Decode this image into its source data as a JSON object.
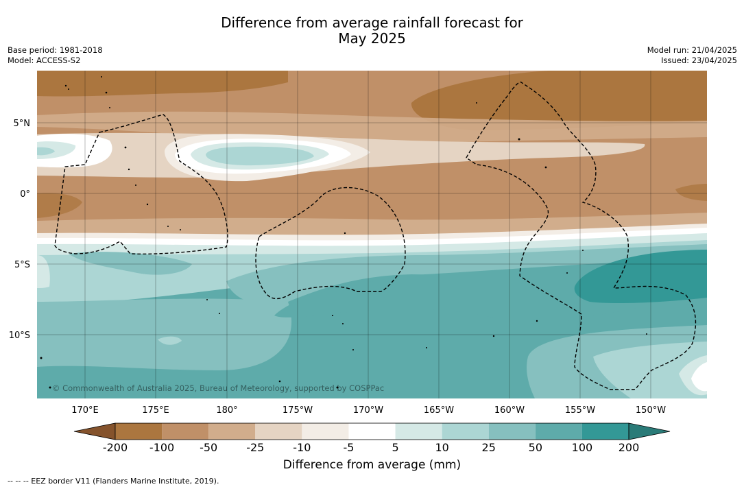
{
  "title": {
    "line1": "Difference from average rainfall forecast for",
    "line2": "May 2025"
  },
  "meta": {
    "base_period": "Base period: 1981-2018",
    "model": "Model: ACCESS-S2",
    "model_run": "Model run: 21/04/2025",
    "issued": "Issued: 23/04/2025"
  },
  "map": {
    "copyright": "© Commonwealth of Australia 2025, Bureau of Meteorology, supported by COSPPac",
    "lon_labels": [
      "170°E",
      "175°E",
      "180°",
      "175°W",
      "170°W",
      "165°W",
      "160°W",
      "155°W",
      "150°W"
    ],
    "lat_labels": [
      "5°N",
      "0°",
      "5°S",
      "10°S"
    ],
    "boundary_style": "dashed"
  },
  "colorbar": {
    "label": "Difference from average (mm)",
    "ticks": [
      "-200",
      "-100",
      "-50",
      "-25",
      "-10",
      "-5",
      "5",
      "10",
      "25",
      "50",
      "100",
      "200"
    ],
    "colors": [
      "#85532c",
      "#ab763f",
      "#c09068",
      "#d1ad8c",
      "#e5d4c3",
      "#f3ede6",
      "#ffffff",
      "#d5e9e6",
      "#acd6d4",
      "#86c0bf",
      "#5eabaa",
      "#339896",
      "#2a7b78"
    ]
  },
  "footer": "--  --  -- EEZ border V11 (Flanders Marine Institute, 2019)."
}
